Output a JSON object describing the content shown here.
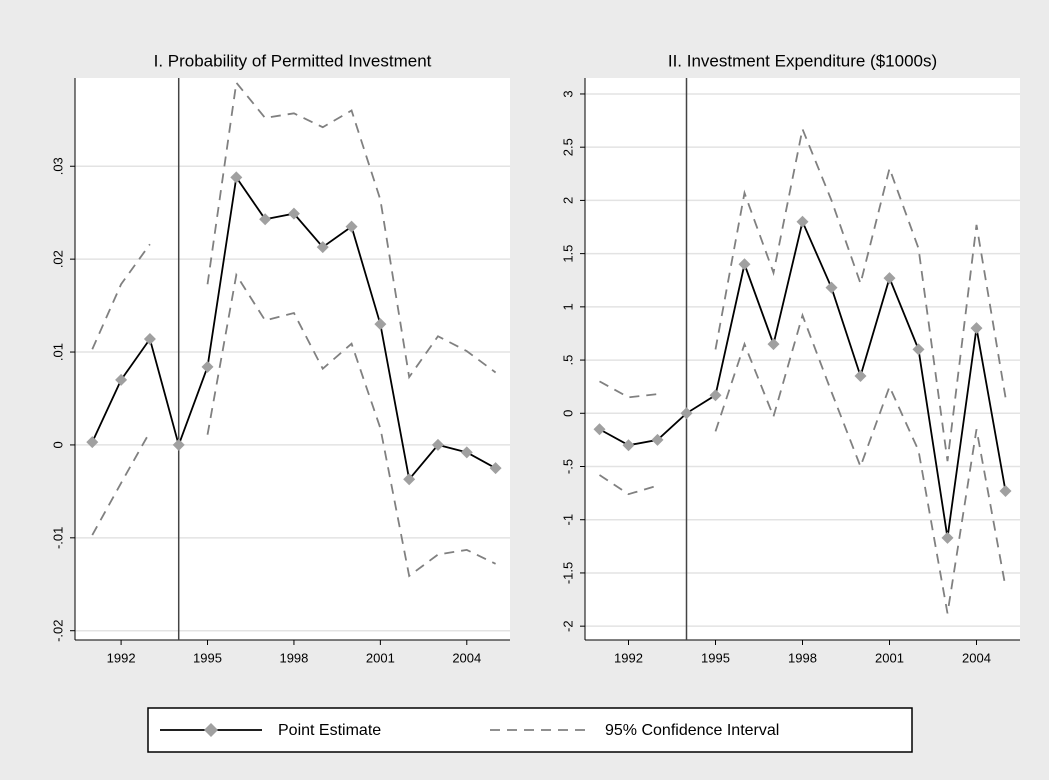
{
  "chart_data": [
    {
      "type": "line",
      "title": "I. Probability of Permitted Investment",
      "x": [
        1991,
        1992,
        1993,
        1994,
        1995,
        1996,
        1997,
        1998,
        1999,
        2000,
        2001,
        2002,
        2003,
        2004,
        2005
      ],
      "xlim": [
        1990.4,
        2005.5
      ],
      "xticks": [
        1992,
        1995,
        1998,
        2001,
        2004
      ],
      "ylim": [
        -0.021,
        0.0395
      ],
      "yticks": [
        {
          "value": -0.02,
          "label": "-.02"
        },
        {
          "value": -0.01,
          "label": "-.01"
        },
        0,
        {
          "value": 0.01,
          "label": ".01"
        },
        {
          "value": 0.02,
          "label": ".02"
        },
        {
          "value": 0.03,
          "label": ".03"
        }
      ],
      "grid": true,
      "vline": 1994,
      "series": [
        {
          "name": "Point Estimate",
          "color": "#000000",
          "marker_color": "#a0a0a0",
          "values": [
            0.0003,
            0.007,
            0.0114,
            0,
            0.0084,
            0.0288,
            0.0243,
            0.0249,
            0.0213,
            0.0235,
            0.013,
            -0.0037,
            0,
            -0.0008,
            -0.0025
          ]
        },
        {
          "name": "95% Confidence Interval",
          "color": "#808080",
          "upper": [
            0.0103,
            0.0173,
            0.0216,
            null,
            0.0173,
            0.039,
            0.0352,
            0.0357,
            0.0342,
            0.036,
            0.0264,
            0.0073,
            0.0117,
            0.0101,
            0.0078
          ],
          "lower": [
            -0.0097,
            -0.0041,
            0.0014,
            null,
            0.0011,
            0.0183,
            0.0134,
            0.0142,
            0.0082,
            0.0109,
            0.0018,
            -0.0141,
            -0.0118,
            -0.0113,
            -0.0128
          ]
        }
      ]
    },
    {
      "type": "line",
      "title": "II. Investment Expenditure ($1000s)",
      "x": [
        1991,
        1992,
        1993,
        1994,
        1995,
        1996,
        1997,
        1998,
        1999,
        2000,
        2001,
        2002,
        2003,
        2004,
        2005
      ],
      "xlim": [
        1990.5,
        2005.5
      ],
      "xticks": [
        1992,
        1995,
        1998,
        2001,
        2004
      ],
      "ylim": [
        -2.13,
        3.15
      ],
      "yticks": [
        -2,
        -1.5,
        -1,
        {
          "value": -0.5,
          "label": "-.5"
        },
        0,
        {
          "value": 0.5,
          "label": ".5"
        },
        1,
        1.5,
        2,
        2.5,
        3
      ],
      "grid": true,
      "vline": 1994,
      "series": [
        {
          "color": "#000000",
          "marker_color": "#a0a0a0",
          "values": [
            -0.15,
            -0.3,
            -0.25,
            0,
            0.17,
            1.4,
            0.65,
            1.8,
            1.18,
            0.35,
            1.27,
            0.6,
            -1.17,
            0.8,
            -0.73
          ]
        },
        {
          "color": "#808080",
          "upper": [
            0.3,
            0.15,
            0.18,
            null,
            0.6,
            2.07,
            1.32,
            2.67,
            2.0,
            1.22,
            2.3,
            1.55,
            -0.45,
            1.77,
            0.15
          ],
          "lower": [
            -0.58,
            -0.76,
            -0.68,
            null,
            -0.17,
            0.65,
            -0.03,
            0.92,
            0.2,
            -0.5,
            0.25,
            -0.35,
            -1.88,
            -0.15,
            -1.63
          ]
        }
      ]
    }
  ]
}
